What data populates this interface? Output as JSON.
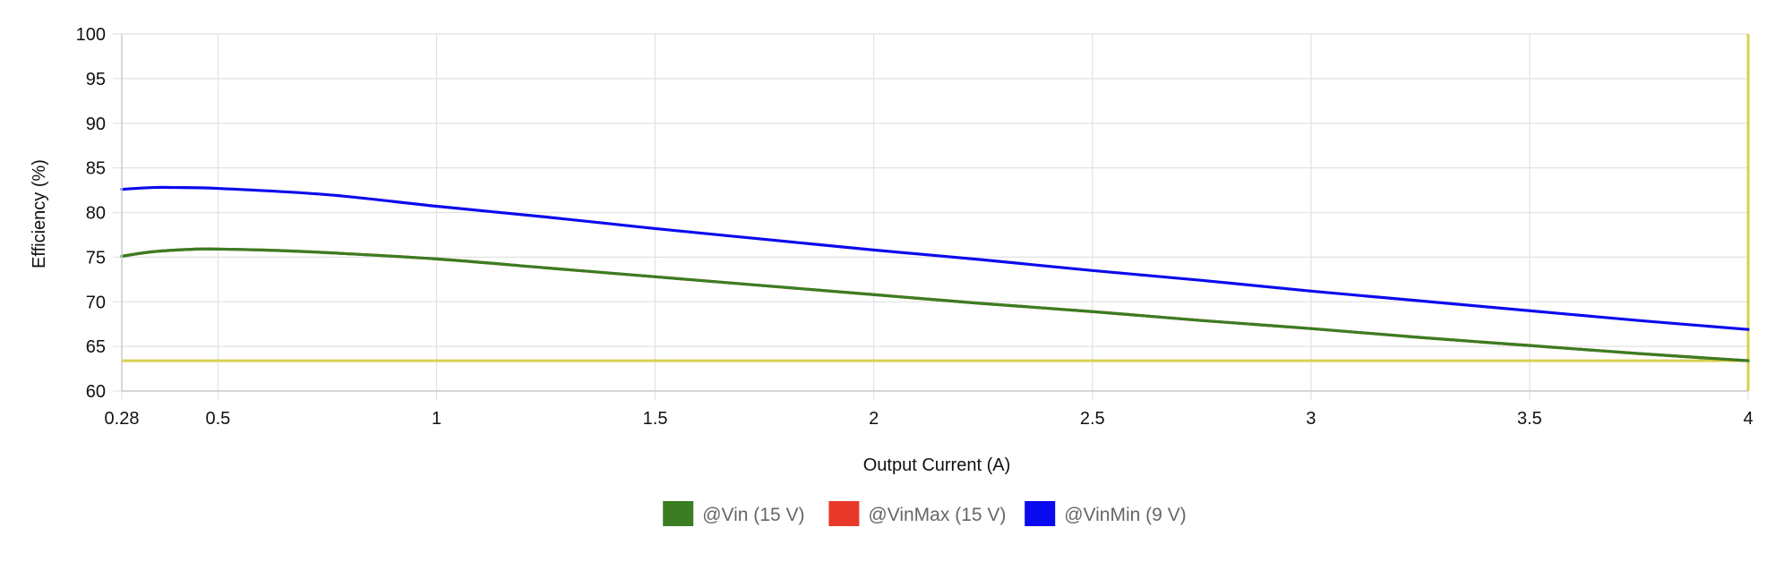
{
  "chart_data": {
    "type": "line",
    "xlabel": "Output Current (A)",
    "ylabel": "Efficiency (%)",
    "xlim": [
      0.28,
      4
    ],
    "ylim": [
      60,
      100
    ],
    "x_ticks": [
      "0.28",
      "0.5",
      "1",
      "1.5",
      "2",
      "2.5",
      "3",
      "3.5",
      "4"
    ],
    "x_tick_values": [
      0.28,
      0.5,
      1,
      1.5,
      2,
      2.5,
      3,
      3.5,
      4
    ],
    "y_ticks": [
      "60",
      "65",
      "70",
      "75",
      "80",
      "85",
      "90",
      "95",
      "100"
    ],
    "y_tick_values": [
      60,
      65,
      70,
      75,
      80,
      85,
      90,
      95,
      100
    ],
    "grid": true,
    "legend_position": "bottom-center",
    "series": [
      {
        "name": "@Vin (15 V)",
        "color": "#3a7d22",
        "x": [
          0.28,
          0.35,
          0.45,
          0.5,
          0.6,
          0.75,
          1,
          1.25,
          1.5,
          1.75,
          2,
          2.25,
          2.5,
          2.75,
          3,
          3.25,
          3.5,
          3.75,
          4
        ],
        "y": [
          75.1,
          75.6,
          75.9,
          75.9,
          75.8,
          75.5,
          74.8,
          73.8,
          72.8,
          71.8,
          70.8,
          69.8,
          68.9,
          67.9,
          67.0,
          66.0,
          65.1,
          64.2,
          63.4
        ]
      },
      {
        "name": "@VinMax (15 V)",
        "color": "#e8392b",
        "x": [
          0.28,
          0.35,
          0.45,
          0.5,
          0.6,
          0.75,
          1,
          1.25,
          1.5,
          1.75,
          2,
          2.25,
          2.5,
          2.75,
          3,
          3.25,
          3.5,
          3.75,
          4
        ],
        "y": [
          75.1,
          75.6,
          75.9,
          75.9,
          75.8,
          75.5,
          74.8,
          73.8,
          72.8,
          71.8,
          70.8,
          69.8,
          68.9,
          67.9,
          67.0,
          66.0,
          65.1,
          64.2,
          63.4
        ]
      },
      {
        "name": "@VinMin (9 V)",
        "color": "#0a0aef",
        "x": [
          0.28,
          0.35,
          0.4,
          0.5,
          0.75,
          1,
          1.25,
          1.5,
          1.75,
          2,
          2.25,
          2.5,
          2.75,
          3,
          3.25,
          3.5,
          3.75,
          4
        ],
        "y": [
          82.6,
          82.8,
          82.8,
          82.7,
          82.0,
          80.7,
          79.5,
          78.2,
          77.0,
          75.8,
          74.7,
          73.5,
          72.4,
          71.2,
          70.1,
          69.0,
          67.9,
          66.9
        ]
      }
    ],
    "reference_lines": [
      {
        "orientation": "horizontal",
        "value": 63.4,
        "color": "#d8d050"
      },
      {
        "orientation": "vertical",
        "value": 4,
        "color": "#d8d050"
      }
    ]
  }
}
